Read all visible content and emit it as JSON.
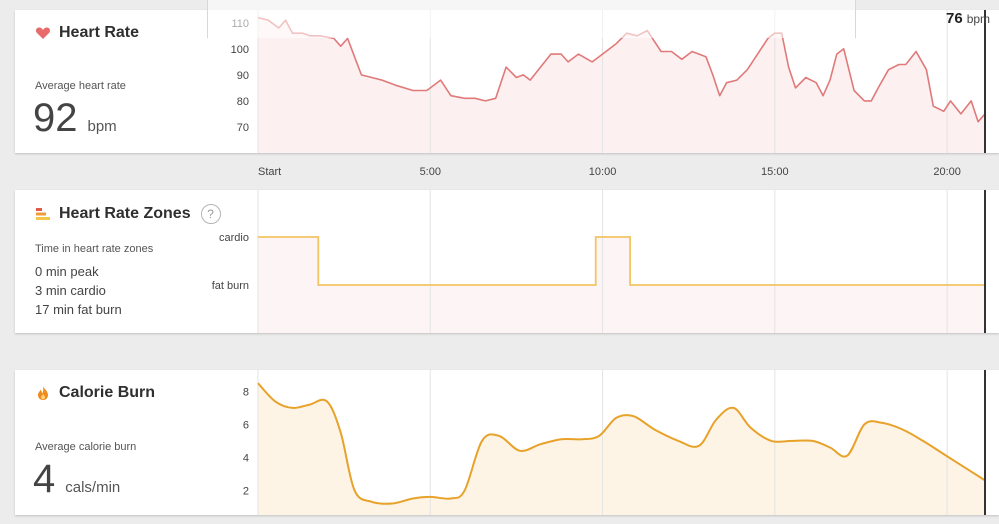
{
  "current_readout": {
    "value": "76",
    "unit": "bpm"
  },
  "heart_rate": {
    "title": "Heart Rate",
    "icon": "heart-icon",
    "stat_label": "Average heart rate",
    "stat_value": "92",
    "stat_unit": "bpm"
  },
  "zones": {
    "title": "Heart Rate Zones",
    "icon": "zones-bars-icon",
    "help": "?",
    "stat_label": "Time in heart rate zones",
    "lines": [
      "0 min peak",
      "3 min cardio",
      "17 min fat burn"
    ]
  },
  "calories": {
    "title": "Calorie Burn",
    "icon": "flame-icon",
    "stat_label": "Average calorie burn",
    "stat_value": "4",
    "stat_unit": "cals/min"
  },
  "colors": {
    "heart_line": "#e07a7a",
    "heart_fill": "#fdf0f0",
    "zone_line": "#f2c463",
    "zone_fill": "#fdf5f5",
    "cal_line": "#e8a22a",
    "cal_fill": "#fdf4e6",
    "grid": "#e3e3e3",
    "cursor": "#333333"
  },
  "chart_data": [
    {
      "type": "line",
      "x_unit": "minutes",
      "x_tick_labels": [
        "Start",
        "5:00",
        "10:00",
        "15:00",
        "20:00"
      ],
      "x_tick_values": [
        0,
        5,
        10,
        15,
        20
      ],
      "xlim": [
        0,
        21.1
      ],
      "yticks": [
        110,
        100,
        90,
        80,
        70
      ],
      "ylim": [
        60,
        113
      ],
      "x": [
        0,
        0.3,
        0.6,
        0.8,
        1.0,
        1.3,
        1.5,
        1.8,
        2.2,
        2.4,
        2.6,
        2.8,
        3.0,
        3.3,
        3.6,
        4.0,
        4.5,
        4.9,
        5.3,
        5.6,
        6.0,
        6.3,
        6.6,
        6.9,
        7.2,
        7.5,
        7.7,
        7.9,
        8.2,
        8.5,
        8.8,
        9.0,
        9.3,
        9.7,
        10.0,
        10.4,
        10.7,
        11.0,
        11.3,
        11.7,
        12.0,
        12.3,
        12.6,
        13.0,
        13.2,
        13.4,
        13.6,
        13.9,
        14.2,
        14.5,
        14.8,
        15.0,
        15.2,
        15.4,
        15.6,
        15.9,
        16.2,
        16.4,
        16.6,
        16.8,
        17.0,
        17.3,
        17.6,
        17.8,
        18.0,
        18.3,
        18.6,
        18.8,
        19.1,
        19.4,
        19.6,
        19.9,
        20.1,
        20.4,
        20.7,
        20.9,
        21.1
      ],
      "y": [
        112,
        111,
        108,
        111,
        106,
        106,
        105,
        105,
        104,
        101,
        104,
        97,
        90,
        89,
        88,
        86,
        84,
        84,
        88,
        82,
        81,
        81,
        80,
        81,
        93,
        89,
        90,
        88,
        93,
        98,
        98,
        95,
        98,
        95,
        98,
        102,
        106,
        105,
        107,
        99,
        99,
        96,
        99,
        97,
        90,
        82,
        87,
        88,
        92,
        98,
        104,
        106,
        106,
        93,
        85,
        89,
        87,
        82,
        88,
        98,
        100,
        84,
        80,
        80,
        85,
        92,
        94,
        94,
        99,
        92,
        78,
        76,
        80,
        75,
        80,
        72,
        75
      ]
    },
    {
      "type": "line",
      "step": true,
      "x_unit": "minutes",
      "categories": [
        "cardio",
        "fat burn"
      ],
      "xlim": [
        0,
        21.1
      ],
      "x": [
        0,
        1.75,
        1.75,
        9.8,
        9.8,
        10.8,
        10.8,
        21.1
      ],
      "y": [
        "cardio",
        "cardio",
        "fat burn",
        "fat burn",
        "cardio",
        "cardio",
        "fat burn",
        "fat burn"
      ]
    },
    {
      "type": "line",
      "x_unit": "minutes",
      "xlim": [
        0,
        21.1
      ],
      "yticks": [
        8,
        6,
        4,
        2
      ],
      "ylim": [
        0.5,
        9
      ],
      "x": [
        0,
        0.5,
        1.0,
        1.5,
        2.0,
        2.4,
        2.8,
        3.3,
        3.9,
        4.5,
        5.0,
        5.6,
        6.0,
        6.5,
        7.0,
        7.6,
        8.2,
        8.8,
        9.4,
        9.9,
        10.4,
        10.9,
        11.5,
        12.2,
        12.8,
        13.3,
        13.8,
        14.3,
        14.9,
        15.5,
        16.1,
        16.6,
        17.1,
        17.6,
        18.1,
        18.7,
        19.3,
        19.9,
        20.5,
        21.1
      ],
      "y": [
        8.5,
        7.4,
        7.0,
        7.2,
        7.4,
        5.5,
        2.0,
        1.3,
        1.2,
        1.5,
        1.6,
        1.5,
        2.0,
        5.0,
        5.3,
        4.4,
        4.8,
        5.1,
        5.1,
        5.3,
        6.4,
        6.5,
        5.7,
        5.0,
        4.7,
        6.3,
        7.0,
        5.8,
        5.0,
        5.0,
        5.0,
        4.6,
        4.1,
        6.0,
        6.1,
        5.7,
        5.0,
        4.2,
        3.4,
        2.6
      ]
    }
  ]
}
